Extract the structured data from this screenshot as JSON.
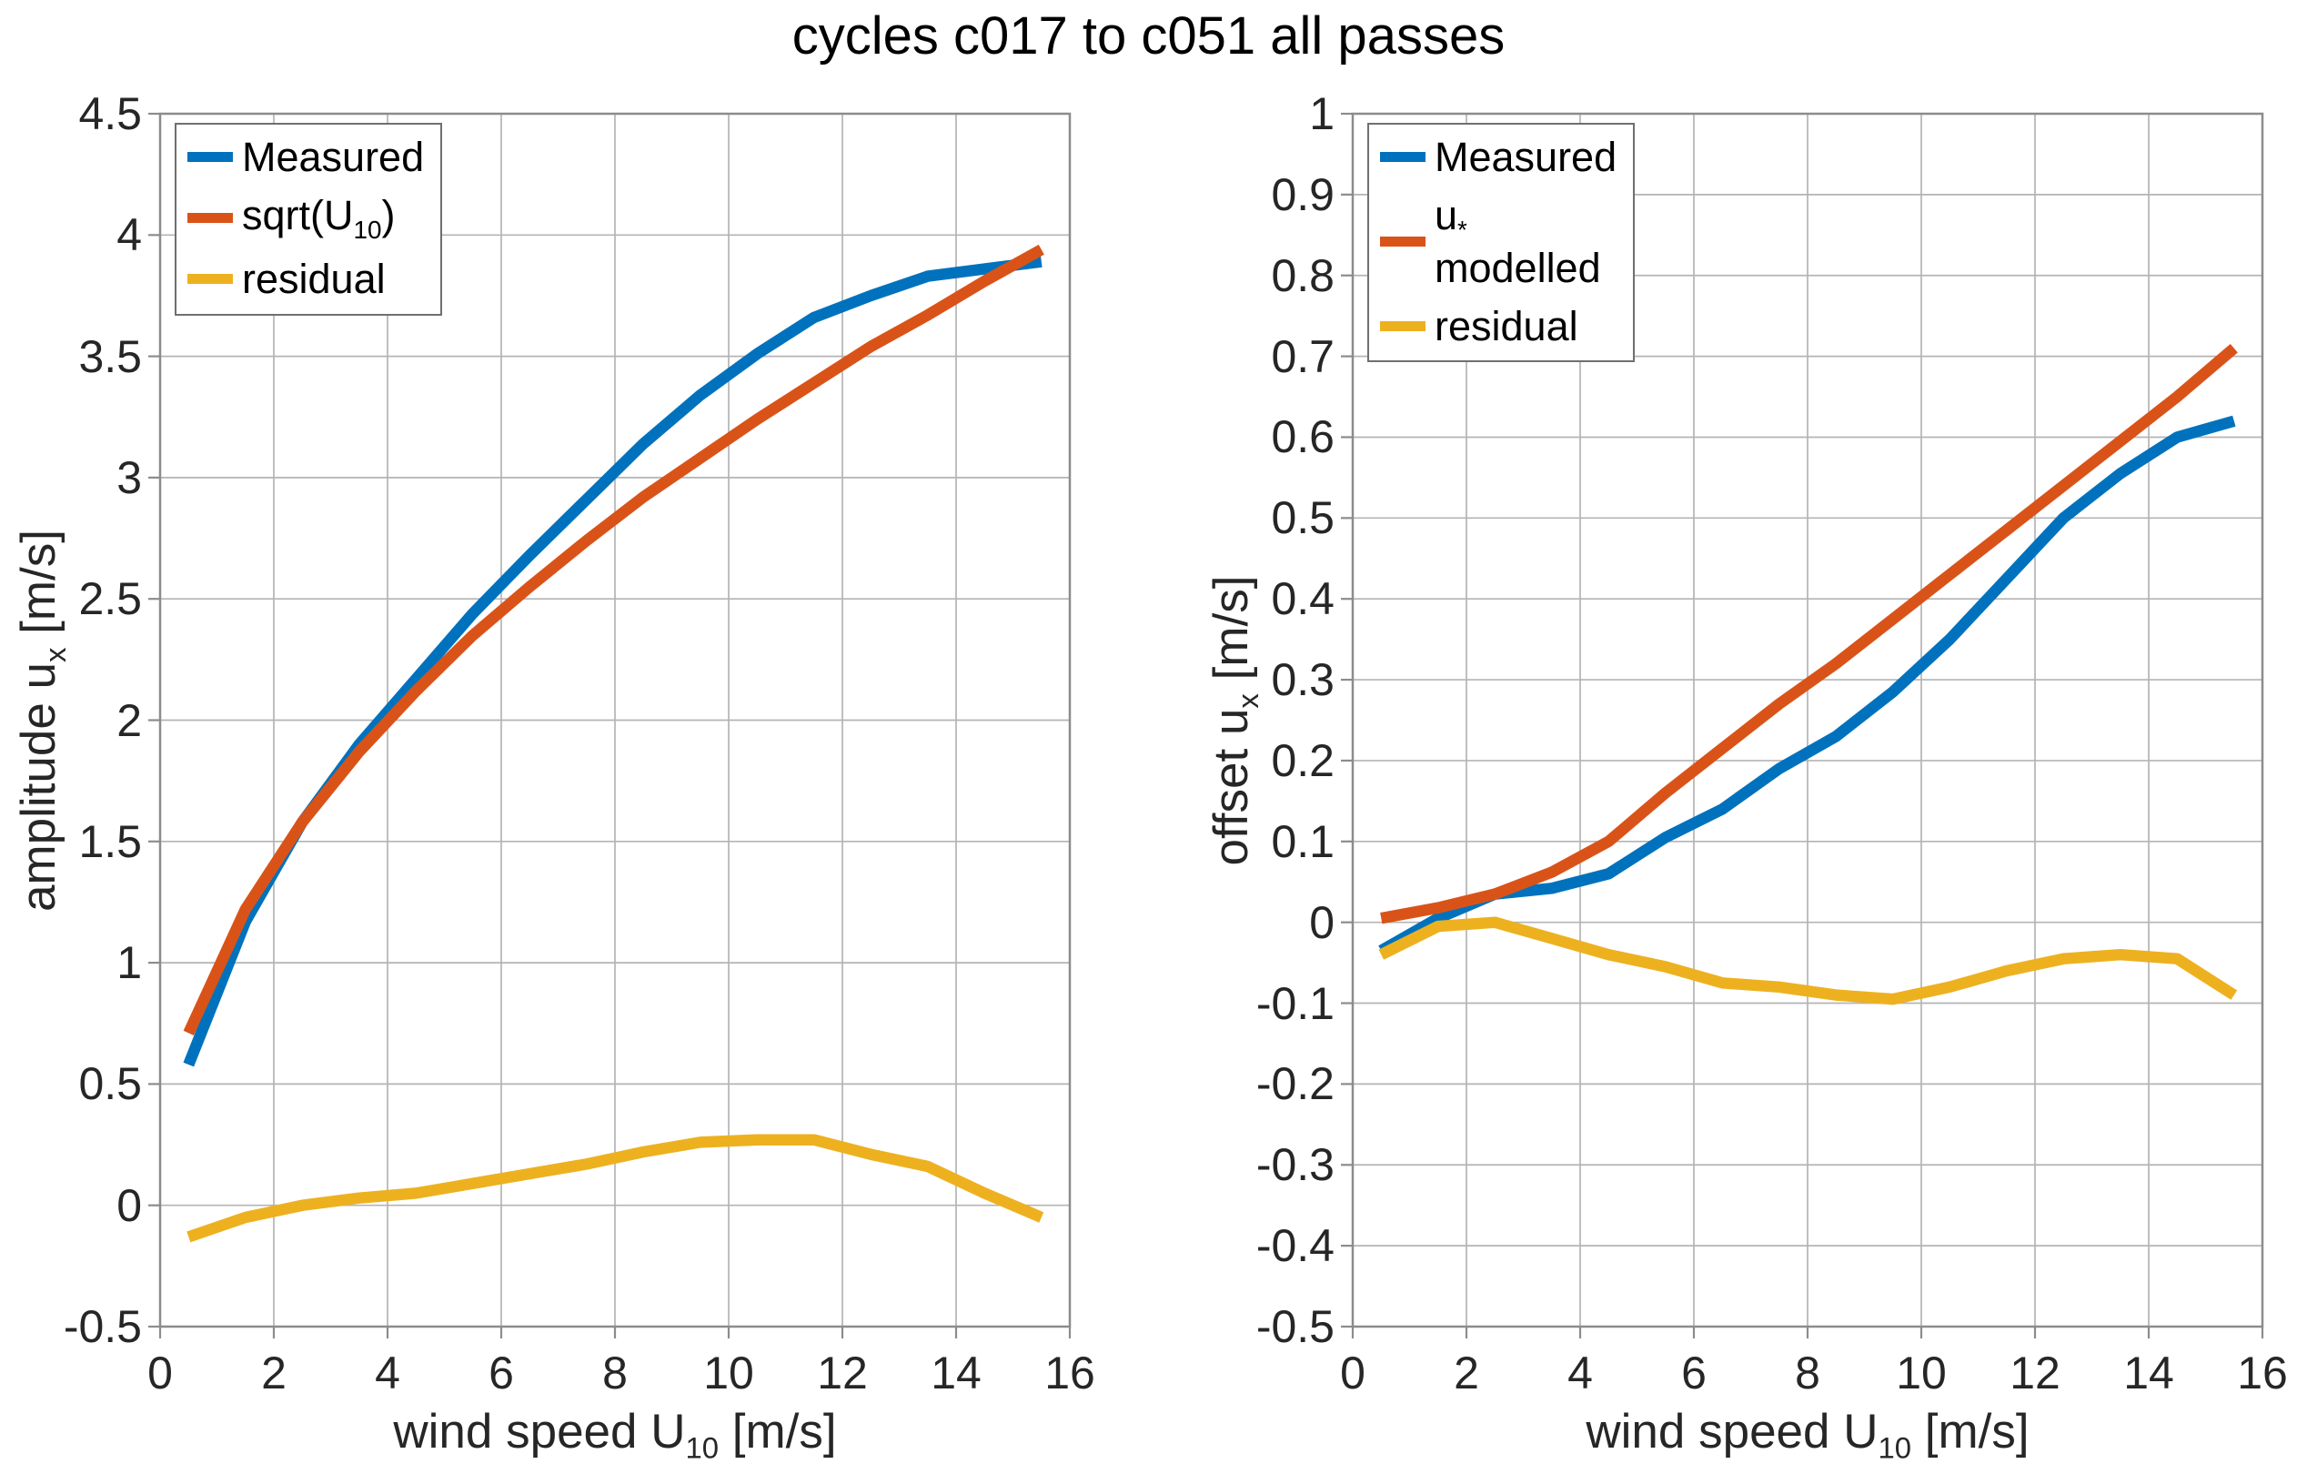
{
  "title": "cycles c017 to c051 all passes",
  "palette": {
    "measured": "#0072BD",
    "model": "#D95319",
    "residual": "#EDB120",
    "grid": "#b4b4b4",
    "axis": "#8c8c8c",
    "text": "#262626",
    "title_color": "#000000",
    "background": "#ffffff",
    "legend_border": "#6f6f6f"
  },
  "chart_data": [
    {
      "type": "line",
      "title": "",
      "xlabel": "wind speed U_{10} [m/s]",
      "ylabel": "amplitude u_{x} [m/s]",
      "xlim": [
        0,
        16
      ],
      "ylim": [
        -0.5,
        4.5
      ],
      "xticks": [
        0,
        2,
        4,
        6,
        8,
        10,
        12,
        14,
        16
      ],
      "yticks": [
        -0.5,
        0,
        0.5,
        1,
        1.5,
        2,
        2.5,
        3,
        3.5,
        4,
        4.5
      ],
      "grid": true,
      "legend_position": "top-left",
      "x": [
        0.5,
        1.5,
        2.5,
        3.5,
        4.5,
        5.5,
        6.5,
        7.5,
        8.5,
        9.5,
        10.5,
        11.5,
        12.5,
        13.5,
        14.5,
        15.5
      ],
      "series": [
        {
          "name": "Measured",
          "color": "#0072BD",
          "values": [
            0.58,
            1.17,
            1.58,
            1.9,
            2.17,
            2.44,
            2.68,
            2.91,
            3.14,
            3.34,
            3.51,
            3.66,
            3.75,
            3.83,
            3.86,
            3.89
          ]
        },
        {
          "name": "sqrt(U_{10})",
          "color": "#D95319",
          "values": [
            0.71,
            1.22,
            1.58,
            1.87,
            2.12,
            2.35,
            2.55,
            2.74,
            2.92,
            3.08,
            3.24,
            3.39,
            3.54,
            3.67,
            3.81,
            3.94
          ]
        },
        {
          "name": "residual",
          "color": "#EDB120",
          "values": [
            -0.13,
            -0.05,
            0.0,
            0.03,
            0.05,
            0.09,
            0.13,
            0.17,
            0.22,
            0.26,
            0.27,
            0.27,
            0.21,
            0.16,
            0.05,
            -0.05
          ]
        }
      ]
    },
    {
      "type": "line",
      "title": "",
      "xlabel": "wind speed U_{10} [m/s]",
      "ylabel": "offset u_{x} [m/s]",
      "xlim": [
        0,
        16
      ],
      "ylim": [
        -0.5,
        1
      ],
      "xticks": [
        0,
        2,
        4,
        6,
        8,
        10,
        12,
        14,
        16
      ],
      "yticks": [
        -0.5,
        -0.4,
        -0.3,
        -0.2,
        -0.1,
        0,
        0.1,
        0.2,
        0.3,
        0.4,
        0.5,
        0.6,
        0.7,
        0.8,
        0.9,
        1
      ],
      "grid": true,
      "legend_position": "top-left",
      "x": [
        0.5,
        1.5,
        2.5,
        3.5,
        4.5,
        5.5,
        6.5,
        7.5,
        8.5,
        9.5,
        10.5,
        11.5,
        12.5,
        13.5,
        14.5,
        15.5
      ],
      "series": [
        {
          "name": "Measured",
          "color": "#0072BD",
          "values": [
            -0.035,
            0.005,
            0.035,
            0.042,
            0.06,
            0.105,
            0.14,
            0.19,
            0.23,
            0.285,
            0.35,
            0.425,
            0.5,
            0.555,
            0.6,
            0.62
          ]
        },
        {
          "name": "u_{*} modelled",
          "color": "#D95319",
          "values": [
            0.005,
            0.018,
            0.035,
            0.062,
            0.1,
            0.16,
            0.215,
            0.27,
            0.32,
            0.375,
            0.43,
            0.485,
            0.54,
            0.595,
            0.65,
            0.71
          ]
        },
        {
          "name": "residual",
          "color": "#EDB120",
          "values": [
            -0.04,
            -0.005,
            0.0,
            -0.02,
            -0.04,
            -0.055,
            -0.075,
            -0.08,
            -0.09,
            -0.095,
            -0.08,
            -0.06,
            -0.045,
            -0.04,
            -0.045,
            -0.09
          ]
        }
      ]
    }
  ]
}
